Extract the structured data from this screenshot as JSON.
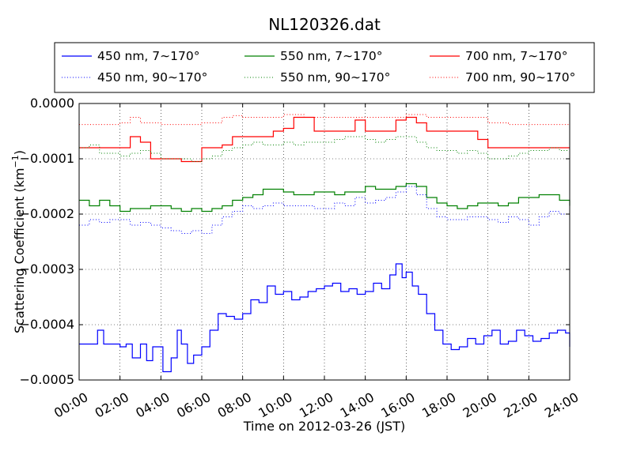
{
  "chart_data": {
    "type": "line",
    "title": "NL120326.dat",
    "xlabel": "Time on 2012-03-26 (JST)",
    "ylabel": "Scattering Coefficient (km",
    "ylabel_sup": "−1",
    "ylabel_close": ")",
    "xlim": [
      0,
      24
    ],
    "ylim": [
      -0.0005,
      0.0
    ],
    "x_ticks": [
      0,
      2,
      4,
      6,
      8,
      10,
      12,
      14,
      16,
      18,
      20,
      22,
      24
    ],
    "x_tick_labels": [
      "00:00",
      "02:00",
      "04:00",
      "06:00",
      "08:00",
      "10:00",
      "12:00",
      "14:00",
      "16:00",
      "18:00",
      "20:00",
      "22:00",
      "24:00"
    ],
    "y_ticks": [
      -0.0005,
      -0.0004,
      -0.0003,
      -0.0002,
      -0.0001,
      0.0
    ],
    "y_tick_labels": [
      "−0.0005",
      "−0.0004",
      "−0.0003",
      "−0.0002",
      "−0.0001",
      "0.0000"
    ],
    "grid": true,
    "legend_position": "top",
    "series": [
      {
        "name": "450 nm, 7∼170°",
        "color": "#0000ff",
        "style": "solid",
        "x": [
          0,
          0.5,
          0.9,
          1.2,
          1.5,
          2.0,
          2.3,
          2.6,
          3.0,
          3.3,
          3.6,
          3.9,
          4.1,
          4.5,
          4.8,
          5.0,
          5.3,
          5.6,
          6.0,
          6.4,
          6.8,
          7.2,
          7.6,
          8.0,
          8.4,
          8.8,
          9.2,
          9.6,
          10.0,
          10.4,
          10.8,
          11.2,
          11.6,
          12.0,
          12.4,
          12.8,
          13.2,
          13.6,
          14.0,
          14.4,
          14.8,
          15.2,
          15.5,
          15.8,
          16.0,
          16.3,
          16.6,
          17.0,
          17.4,
          17.8,
          18.2,
          18.6,
          19.0,
          19.4,
          19.8,
          20.2,
          20.6,
          21.0,
          21.4,
          21.8,
          22.2,
          22.6,
          23.0,
          23.4,
          23.8,
          24.0
        ],
        "y": [
          -0.000435,
          -0.000435,
          -0.00041,
          -0.000435,
          -0.000435,
          -0.00044,
          -0.000435,
          -0.00046,
          -0.000435,
          -0.000465,
          -0.00044,
          -0.00044,
          -0.000485,
          -0.00046,
          -0.00041,
          -0.000435,
          -0.00047,
          -0.000455,
          -0.00044,
          -0.00041,
          -0.00038,
          -0.000385,
          -0.00039,
          -0.00038,
          -0.000355,
          -0.00036,
          -0.00033,
          -0.000345,
          -0.00034,
          -0.000355,
          -0.00035,
          -0.00034,
          -0.000335,
          -0.00033,
          -0.000325,
          -0.00034,
          -0.000335,
          -0.000345,
          -0.00034,
          -0.000325,
          -0.000335,
          -0.00031,
          -0.00029,
          -0.000315,
          -0.000305,
          -0.00033,
          -0.000345,
          -0.00038,
          -0.00041,
          -0.000435,
          -0.000445,
          -0.00044,
          -0.000425,
          -0.000435,
          -0.00042,
          -0.00041,
          -0.000435,
          -0.00043,
          -0.00041,
          -0.00042,
          -0.00043,
          -0.000425,
          -0.000415,
          -0.00041,
          -0.000415,
          -0.00044
        ]
      },
      {
        "name": "550 nm, 7∼170°",
        "color": "#008000",
        "style": "solid",
        "x": [
          0,
          0.5,
          1.0,
          1.5,
          2.0,
          2.5,
          3.0,
          3.5,
          4.0,
          4.5,
          5.0,
          5.5,
          6.0,
          6.5,
          7.0,
          7.5,
          8.0,
          8.5,
          9.0,
          9.5,
          10.0,
          10.5,
          11.0,
          11.5,
          12.0,
          12.5,
          13.0,
          13.5,
          14.0,
          14.5,
          15.0,
          15.5,
          16.0,
          16.5,
          17.0,
          17.5,
          18.0,
          18.5,
          19.0,
          19.5,
          20.0,
          20.5,
          21.0,
          21.5,
          22.0,
          22.5,
          23.0,
          23.5,
          24.0
        ],
        "y": [
          -0.000175,
          -0.000185,
          -0.000175,
          -0.000185,
          -0.000195,
          -0.00019,
          -0.00019,
          -0.000185,
          -0.000185,
          -0.00019,
          -0.000195,
          -0.00019,
          -0.000195,
          -0.00019,
          -0.000185,
          -0.000175,
          -0.00017,
          -0.000165,
          -0.000155,
          -0.000155,
          -0.00016,
          -0.000165,
          -0.000165,
          -0.00016,
          -0.00016,
          -0.000165,
          -0.00016,
          -0.00016,
          -0.00015,
          -0.000155,
          -0.000155,
          -0.00015,
          -0.000145,
          -0.00015,
          -0.00017,
          -0.00018,
          -0.000185,
          -0.00019,
          -0.000185,
          -0.00018,
          -0.00018,
          -0.000185,
          -0.00018,
          -0.00017,
          -0.00017,
          -0.000165,
          -0.000165,
          -0.000175,
          -0.000185
        ]
      },
      {
        "name": "700 nm, 7∼170°",
        "color": "#ff0000",
        "style": "solid",
        "x": [
          0,
          0.5,
          1.0,
          1.5,
          2.0,
          2.5,
          3.0,
          3.5,
          4.0,
          4.5,
          5.0,
          5.5,
          6.0,
          6.5,
          7.0,
          7.5,
          8.0,
          8.5,
          9.0,
          9.5,
          10.0,
          10.5,
          11.0,
          11.5,
          12.0,
          12.5,
          13.0,
          13.5,
          14.0,
          14.5,
          15.0,
          15.5,
          16.0,
          16.5,
          17.0,
          17.5,
          18.0,
          18.5,
          19.0,
          19.5,
          20.0,
          20.5,
          21.0,
          21.5,
          22.0,
          22.5,
          23.0,
          23.5,
          24.0
        ],
        "y": [
          -8e-05,
          -8e-05,
          -8e-05,
          -8e-05,
          -8e-05,
          -6e-05,
          -7e-05,
          -0.0001,
          -0.0001,
          -0.0001,
          -0.000105,
          -0.000105,
          -8e-05,
          -8e-05,
          -7.5e-05,
          -6e-05,
          -6e-05,
          -6e-05,
          -6e-05,
          -5e-05,
          -4.5e-05,
          -2.5e-05,
          -2.5e-05,
          -5e-05,
          -5e-05,
          -5e-05,
          -5e-05,
          -3e-05,
          -5e-05,
          -5e-05,
          -5e-05,
          -3e-05,
          -2.5e-05,
          -3.5e-05,
          -5e-05,
          -5e-05,
          -5e-05,
          -5e-05,
          -5e-05,
          -6.5e-05,
          -8e-05,
          -8e-05,
          -8e-05,
          -8e-05,
          -8e-05,
          -8e-05,
          -8e-05,
          -8e-05,
          -8e-05
        ]
      },
      {
        "name": "450 nm, 90∼170°",
        "color": "#0000ff",
        "style": "dotted",
        "x": [
          0,
          0.5,
          1.0,
          1.5,
          2.0,
          2.5,
          3.0,
          3.5,
          4.0,
          4.5,
          5.0,
          5.5,
          6.0,
          6.5,
          7.0,
          7.5,
          8.0,
          8.5,
          9.0,
          9.5,
          10.0,
          10.5,
          11.0,
          11.5,
          12.0,
          12.5,
          13.0,
          13.5,
          14.0,
          14.5,
          15.0,
          15.5,
          16.0,
          16.5,
          17.0,
          17.5,
          18.0,
          18.5,
          19.0,
          19.5,
          20.0,
          20.5,
          21.0,
          21.5,
          22.0,
          22.5,
          23.0,
          23.5,
          24.0
        ],
        "y": [
          -0.00022,
          -0.00021,
          -0.000215,
          -0.00021,
          -0.00021,
          -0.00022,
          -0.000215,
          -0.00022,
          -0.000225,
          -0.00023,
          -0.000235,
          -0.00023,
          -0.000235,
          -0.00022,
          -0.000205,
          -0.000195,
          -0.000185,
          -0.00019,
          -0.000185,
          -0.00018,
          -0.000185,
          -0.000185,
          -0.000185,
          -0.00019,
          -0.00019,
          -0.00018,
          -0.000185,
          -0.00017,
          -0.00018,
          -0.000175,
          -0.00017,
          -0.00016,
          -0.00015,
          -0.000165,
          -0.00019,
          -0.000205,
          -0.00021,
          -0.00021,
          -0.000205,
          -0.000205,
          -0.00021,
          -0.000215,
          -0.000205,
          -0.00021,
          -0.00022,
          -0.000205,
          -0.000195,
          -0.0002,
          -0.000215
        ]
      },
      {
        "name": "550 nm, 90∼170°",
        "color": "#008000",
        "style": "dotted",
        "x": [
          0,
          0.5,
          1.0,
          1.5,
          2.0,
          2.5,
          3.0,
          3.5,
          4.0,
          4.5,
          5.0,
          5.5,
          6.0,
          6.5,
          7.0,
          7.5,
          8.0,
          8.5,
          9.0,
          9.5,
          10.0,
          10.5,
          11.0,
          11.5,
          12.0,
          12.5,
          13.0,
          13.5,
          14.0,
          14.5,
          15.0,
          15.5,
          16.0,
          16.5,
          17.0,
          17.5,
          18.0,
          18.5,
          19.0,
          19.5,
          20.0,
          20.5,
          21.0,
          21.5,
          22.0,
          22.5,
          23.0,
          23.5,
          24.0
        ],
        "y": [
          -8e-05,
          -7.5e-05,
          -9e-05,
          -9e-05,
          -9.5e-05,
          -9e-05,
          -8.5e-05,
          -9e-05,
          -0.0001,
          -0.0001,
          -0.0001,
          -0.000105,
          -0.0001,
          -9.5e-05,
          -8.5e-05,
          -8e-05,
          -7.5e-05,
          -7e-05,
          -7.5e-05,
          -7.5e-05,
          -7e-05,
          -7.5e-05,
          -7e-05,
          -7e-05,
          -7e-05,
          -6.5e-05,
          -6e-05,
          -6e-05,
          -6.5e-05,
          -7e-05,
          -6.5e-05,
          -6e-05,
          -6e-05,
          -7e-05,
          -8e-05,
          -8.5e-05,
          -8.5e-05,
          -9e-05,
          -8.5e-05,
          -9e-05,
          -0.0001,
          -0.0001,
          -9.5e-05,
          -9e-05,
          -8.5e-05,
          -8.5e-05,
          -8e-05,
          -8.5e-05,
          -9e-05
        ]
      },
      {
        "name": "700 nm, 90∼170°",
        "color": "#ff0000",
        "style": "dotted",
        "x": [
          0,
          1.0,
          2.0,
          2.5,
          3.0,
          4.0,
          5.0,
          6.0,
          7.0,
          7.5,
          8.0,
          9.0,
          10.0,
          11.0,
          12.0,
          13.0,
          14.0,
          15.0,
          16.0,
          17.0,
          18.0,
          19.0,
          20.0,
          21.0,
          22.0,
          23.0,
          24.0
        ],
        "y": [
          -3.8e-05,
          -3.8e-05,
          -3.5e-05,
          -2.5e-05,
          -3.5e-05,
          -3.8e-05,
          -3.8e-05,
          -3.5e-05,
          -2.5e-05,
          -2.2e-05,
          -2.5e-05,
          -2.5e-05,
          -2e-05,
          -2.5e-05,
          -2.5e-05,
          -2.5e-05,
          -2.5e-05,
          -2.5e-05,
          -2e-05,
          -2.5e-05,
          -2.5e-05,
          -2.5e-05,
          -3.5e-05,
          -3.8e-05,
          -3.8e-05,
          -3.8e-05,
          -3.8e-05
        ]
      }
    ]
  }
}
